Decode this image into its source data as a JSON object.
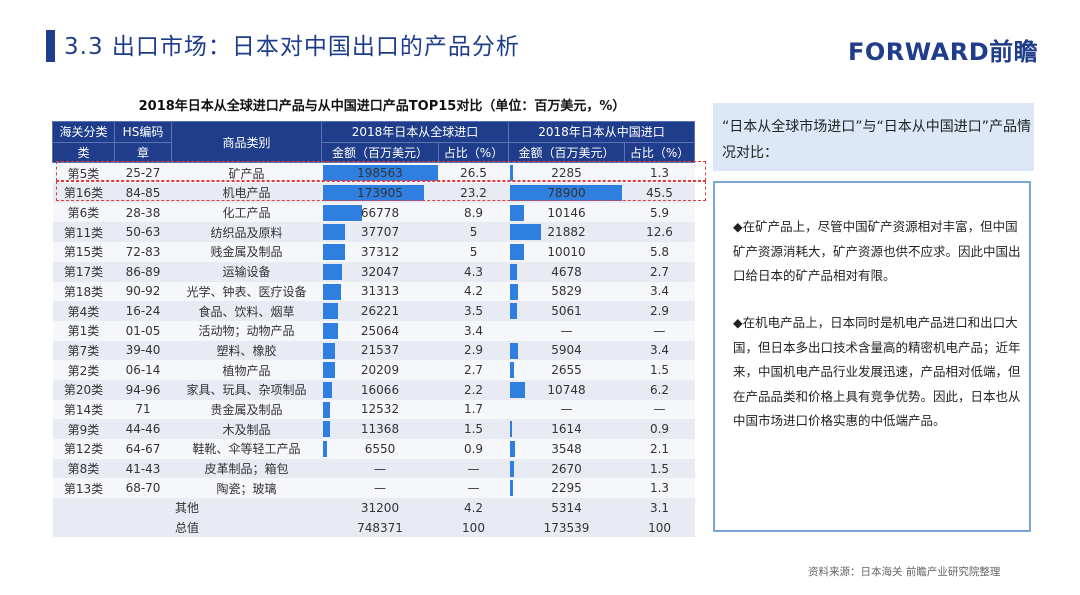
{
  "header": {
    "title": "3.3 出口市场：日本对中国出口的产品分析",
    "logo": "FORWARD前瞻"
  },
  "table": {
    "title": "2018年日本从全球进口产品与从中国进口产品TOP15对比（单位：百万美元，%）",
    "head": {
      "col_category": "海关分类",
      "col_category_sub": "类",
      "col_hs": "HS编码",
      "col_hs_sub": "章",
      "col_product": "商品类别",
      "group_global": "2018年日本从全球进口",
      "group_china": "2018年日本从中国进口",
      "amount": "金额（百万美元）",
      "share": "占比（%）"
    },
    "rows": [
      {
        "cls": "第5类",
        "hs": "25-27",
        "name": "矿产品",
        "g_amt": "198563",
        "g_share": "26.5",
        "c_amt": "2285",
        "c_share": "1.3"
      },
      {
        "cls": "第16类",
        "hs": "84-85",
        "name": "机电产品",
        "g_amt": "173905",
        "g_share": "23.2",
        "c_amt": "78900",
        "c_share": "45.5"
      },
      {
        "cls": "第6类",
        "hs": "28-38",
        "name": "化工产品",
        "g_amt": "66778",
        "g_share": "8.9",
        "c_amt": "10146",
        "c_share": "5.9"
      },
      {
        "cls": "第11类",
        "hs": "50-63",
        "name": "纺织品及原料",
        "g_amt": "37707",
        "g_share": "5",
        "c_amt": "21882",
        "c_share": "12.6"
      },
      {
        "cls": "第15类",
        "hs": "72-83",
        "name": "贱金属及制品",
        "g_amt": "37312",
        "g_share": "5",
        "c_amt": "10010",
        "c_share": "5.8"
      },
      {
        "cls": "第17类",
        "hs": "86-89",
        "name": "运输设备",
        "g_amt": "32047",
        "g_share": "4.3",
        "c_amt": "4678",
        "c_share": "2.7"
      },
      {
        "cls": "第18类",
        "hs": "90-92",
        "name": "光学、钟表、医疗设备",
        "g_amt": "31313",
        "g_share": "4.2",
        "c_amt": "5829",
        "c_share": "3.4"
      },
      {
        "cls": "第4类",
        "hs": "16-24",
        "name": "食品、饮料、烟草",
        "g_amt": "26221",
        "g_share": "3.5",
        "c_amt": "5061",
        "c_share": "2.9"
      },
      {
        "cls": "第1类",
        "hs": "01-05",
        "name": "活动物；动物产品",
        "g_amt": "25064",
        "g_share": "3.4",
        "c_amt": "—",
        "c_share": "—"
      },
      {
        "cls": "第7类",
        "hs": "39-40",
        "name": "塑料、橡胶",
        "g_amt": "21537",
        "g_share": "2.9",
        "c_amt": "5904",
        "c_share": "3.4"
      },
      {
        "cls": "第2类",
        "hs": "06-14",
        "name": "植物产品",
        "g_amt": "20209",
        "g_share": "2.7",
        "c_amt": "2655",
        "c_share": "1.5"
      },
      {
        "cls": "第20类",
        "hs": "94-96",
        "name": "家具、玩具、杂项制品",
        "g_amt": "16066",
        "g_share": "2.2",
        "c_amt": "10748",
        "c_share": "6.2"
      },
      {
        "cls": "第14类",
        "hs": "71",
        "name": "贵金属及制品",
        "g_amt": "12532",
        "g_share": "1.7",
        "c_amt": "—",
        "c_share": "—"
      },
      {
        "cls": "第9类",
        "hs": "44-46",
        "name": "木及制品",
        "g_amt": "11368",
        "g_share": "1.5",
        "c_amt": "1614",
        "c_share": "0.9"
      },
      {
        "cls": "第12类",
        "hs": "64-67",
        "name": "鞋靴、伞等轻工产品",
        "g_amt": "6550",
        "g_share": "0.9",
        "c_amt": "3548",
        "c_share": "2.1"
      },
      {
        "cls": "第8类",
        "hs": "41-43",
        "name": "皮革制品；箱包",
        "g_amt": "—",
        "g_share": "—",
        "c_amt": "2670",
        "c_share": "1.5"
      },
      {
        "cls": "第13类",
        "hs": "68-70",
        "name": "陶瓷；玻璃",
        "g_amt": "—",
        "g_share": "—",
        "c_amt": "2295",
        "c_share": "1.3"
      }
    ],
    "other": {
      "label": "其他",
      "g_amt": "31200",
      "g_share": "4.2",
      "c_amt": "5314",
      "c_share": "3.1"
    },
    "total": {
      "label": "总值",
      "g_amt": "748371",
      "g_share": "100",
      "c_amt": "173539",
      "c_share": "100"
    },
    "bar_color": "#2f7fe0"
  },
  "right": {
    "heading": "“日本从全球市场进口”与“日本从中国进口”产品情况对比：",
    "para1": "◆在矿产品上，尽管中国矿产资源相对丰富，但中国矿产资源消耗大，矿产资源也供不应求。因此中国出口给日本的矿产品相对有限。",
    "para2": "◆在机电产品上，日本同时是机电产品进口和出口大国，但日本多出口技术含量高的精密机电产品；近年来，中国机电产品行业发展迅速，产品相对低端，但在产品品类和价格上具有竞争优势。因此，日本也从中国市场进口价格实惠的中低端产品。"
  },
  "source": "资料来源：日本海关  前瞻产业研究院整理"
}
